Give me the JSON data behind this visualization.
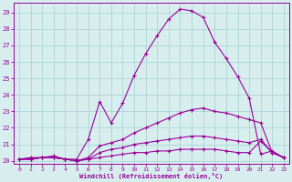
{
  "xlabel": "Windchill (Refroidissement éolien,°C)",
  "background_color": "#d8eeee",
  "grid_color": "#aad4d4",
  "line_color": "#990099",
  "xlim": [
    -0.5,
    23.5
  ],
  "ylim": [
    19.8,
    29.6
  ],
  "yticks": [
    20,
    21,
    22,
    23,
    24,
    25,
    26,
    27,
    28,
    29
  ],
  "xticks": [
    0,
    1,
    2,
    3,
    4,
    5,
    6,
    7,
    8,
    9,
    10,
    11,
    12,
    13,
    14,
    15,
    16,
    17,
    18,
    19,
    20,
    21,
    22,
    23
  ],
  "lines": [
    {
      "x": [
        0,
        1,
        2,
        3,
        4,
        5,
        6,
        7,
        8,
        9,
        10,
        11,
        12,
        13,
        14,
        15,
        16,
        17,
        18,
        19,
        20,
        21,
        22,
        23
      ],
      "y": [
        20.1,
        20.2,
        20.2,
        20.3,
        20.1,
        20.1,
        21.3,
        23.6,
        22.3,
        23.5,
        25.2,
        26.5,
        27.6,
        28.6,
        29.2,
        29.1,
        28.7,
        27.2,
        26.2,
        25.1,
        23.8,
        20.4,
        20.6,
        20.2
      ]
    },
    {
      "x": [
        0,
        1,
        2,
        3,
        4,
        5,
        6,
        7,
        8,
        9,
        10,
        11,
        12,
        13,
        14,
        15,
        16,
        17,
        18,
        19,
        20,
        21,
        22,
        23
      ],
      "y": [
        20.1,
        20.1,
        20.2,
        20.2,
        20.1,
        20.0,
        20.2,
        20.9,
        21.1,
        21.3,
        21.7,
        22.0,
        22.3,
        22.6,
        22.9,
        23.1,
        23.2,
        23.0,
        22.9,
        22.7,
        22.5,
        22.3,
        20.5,
        20.2
      ]
    },
    {
      "x": [
        0,
        1,
        2,
        3,
        4,
        5,
        6,
        7,
        8,
        9,
        10,
        11,
        12,
        13,
        14,
        15,
        16,
        17,
        18,
        19,
        20,
        21,
        22,
        23
      ],
      "y": [
        20.1,
        20.1,
        20.2,
        20.2,
        20.1,
        20.0,
        20.1,
        20.5,
        20.7,
        20.8,
        21.0,
        21.1,
        21.2,
        21.3,
        21.4,
        21.5,
        21.5,
        21.4,
        21.3,
        21.2,
        21.1,
        21.3,
        20.5,
        20.2
      ]
    },
    {
      "x": [
        0,
        1,
        2,
        3,
        4,
        5,
        6,
        7,
        8,
        9,
        10,
        11,
        12,
        13,
        14,
        15,
        16,
        17,
        18,
        19,
        20,
        21,
        22,
        23
      ],
      "y": [
        20.1,
        20.1,
        20.2,
        20.2,
        20.1,
        20.0,
        20.1,
        20.2,
        20.3,
        20.4,
        20.5,
        20.5,
        20.6,
        20.6,
        20.7,
        20.7,
        20.7,
        20.7,
        20.6,
        20.5,
        20.5,
        21.2,
        20.5,
        20.2
      ]
    }
  ]
}
